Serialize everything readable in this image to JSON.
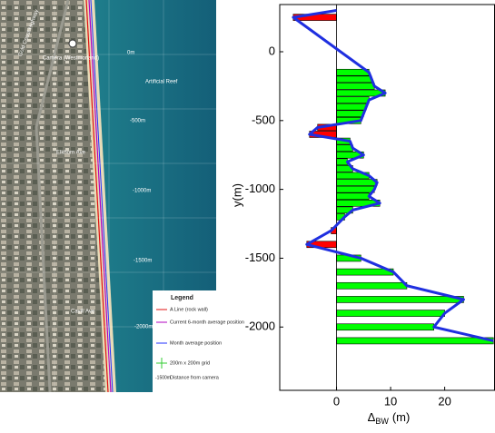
{
  "map": {
    "labels": {
      "camera": "Camera (Westmorland)",
      "reef": "Artificial Reef",
      "d0": "0m",
      "d500": "-500m",
      "d1000": "-1000m",
      "d1500": "-1500m",
      "d2000": "-2000m",
      "road": "Gold Coast Highway",
      "ave1": "Elkhorn Ave",
      "ave2": "Cavill Ave"
    },
    "legend": {
      "title": "Legend",
      "items": [
        "A Line (rock wall)",
        "Current 6-month average position",
        "Month average position",
        "200m x 200m grid"
      ],
      "distance_sample": "-1500m",
      "distance_text": "Distance from camera"
    }
  },
  "chart_data": {
    "type": "hbar-line",
    "ylabel": "y(m)",
    "xlabel": {
      "symbol": "Δ",
      "subscript": "BW",
      "unit": "(m)"
    },
    "positive_color": "#00ff00",
    "negative_color": "#ff0000",
    "line_color": "#1f2fe0",
    "positions": [
      300,
      250,
      -150,
      -200,
      -250,
      -300,
      -350,
      -400,
      -450,
      -500,
      -550,
      -600,
      -650,
      -700,
      -750,
      -800,
      -850,
      -900,
      -950,
      -1000,
      -1050,
      -1100,
      -1150,
      -1200,
      -1300,
      -1400,
      -1500,
      -1600,
      -1700,
      -1800,
      -1900,
      -2000,
      -2100
    ],
    "values": [
      0,
      -8,
      6,
      6.5,
      7,
      9,
      6,
      5.5,
      5,
      4.5,
      -3.5,
      -5,
      2.5,
      3,
      5,
      2,
      3,
      6,
      7.5,
      7,
      6,
      8,
      3,
      1.5,
      -1,
      -5.5,
      4.5,
      10.5,
      13,
      23.5,
      20,
      18,
      29
    ],
    "xlim": [
      -10.5,
      29.3
    ],
    "xticks": [
      0,
      10,
      20
    ],
    "ylim": [
      -2460,
      343
    ],
    "yticks": [
      0,
      -500,
      -1000,
      -1500,
      -2000
    ]
  }
}
